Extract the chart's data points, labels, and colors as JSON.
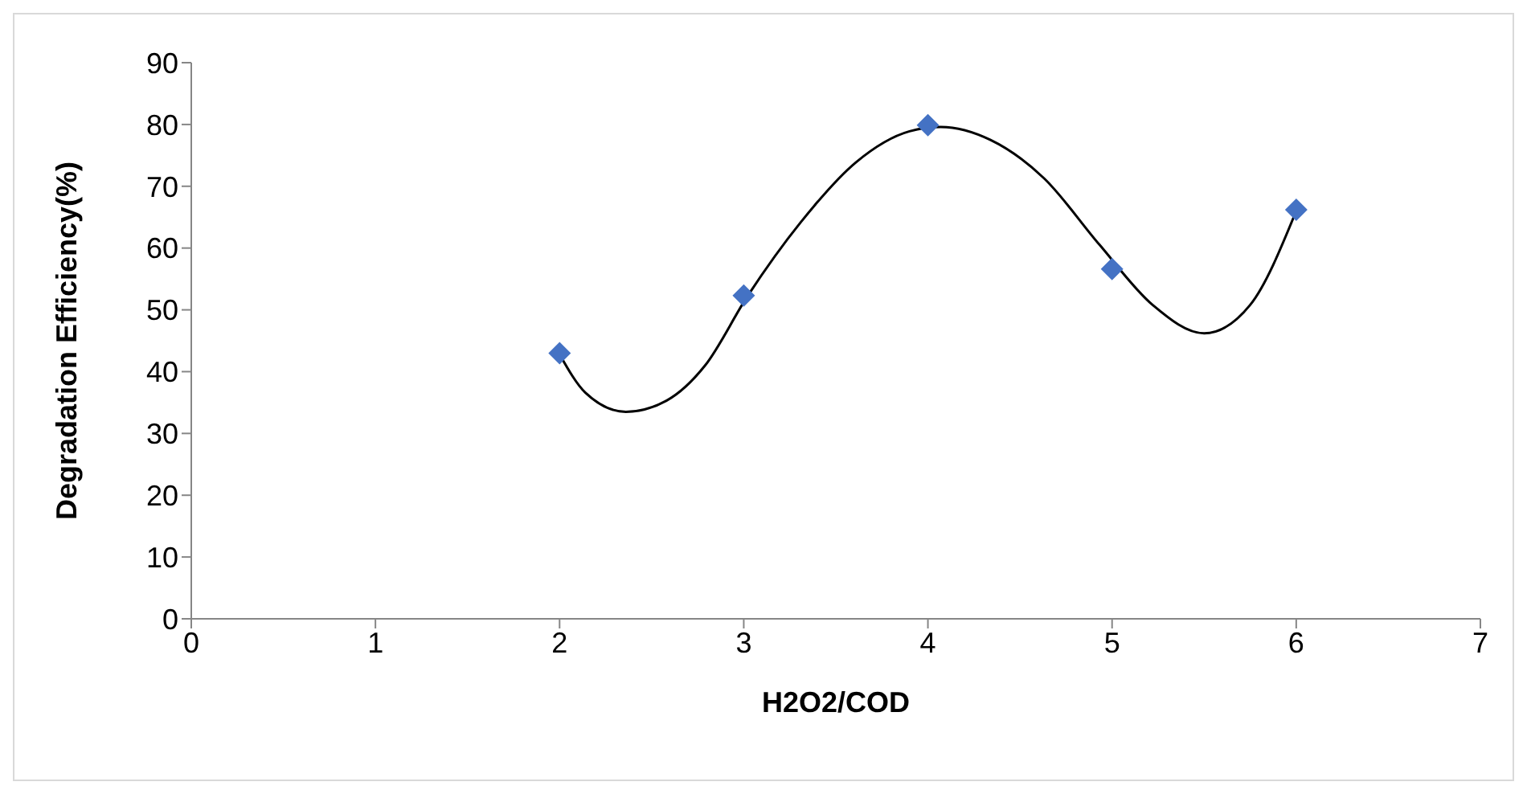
{
  "chart_data": {
    "type": "scatter",
    "xlabel": "H2O2/COD",
    "ylabel": "Degradation Efficiency(%)",
    "xlim": [
      0,
      7
    ],
    "xticks": [
      0,
      1,
      2,
      3,
      4,
      5,
      6,
      7
    ],
    "ylim": [
      0,
      90
    ],
    "yticks": [
      0,
      10,
      20,
      30,
      40,
      50,
      60,
      70,
      80,
      90
    ],
    "grid": false,
    "series": [
      {
        "type": "line",
        "color": "#000000",
        "marker": "none",
        "line_style": "solid",
        "x": [
          2.0,
          2.14,
          2.36,
          2.58,
          2.79,
          3.02,
          3.31,
          3.61,
          3.9,
          4.07,
          4.34,
          4.63,
          4.93,
          5.22,
          5.5,
          5.75,
          6.0
        ],
        "values": [
          42.8,
          36.6,
          33.5,
          35.3,
          41.0,
          52.2,
          64.2,
          73.9,
          78.9,
          79.6,
          77.5,
          71.3,
          60.6,
          50.8,
          46.2,
          50.8,
          66.0
        ]
      },
      {
        "color": "#4472c4",
        "marker": "diamond",
        "x": [
          2,
          3,
          4,
          5,
          6
        ],
        "values": [
          43.0,
          52.3,
          79.9,
          56.6,
          66.2
        ]
      }
    ]
  }
}
